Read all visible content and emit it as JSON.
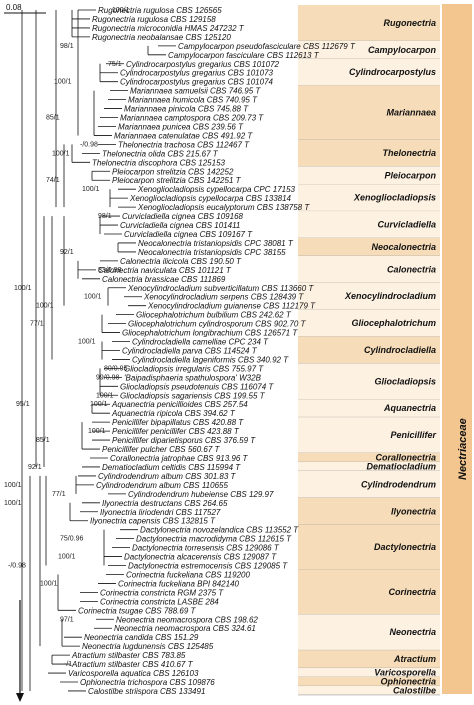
{
  "scale_label": "0.08",
  "family_label": "Nectriaceae",
  "supports": {
    "rugonectria": "100/1",
    "campylocarpon": "98/1",
    "cylindrocarpostylus": "75/1",
    "mariannaea_a": "100/1",
    "mariannaea_b": "85/1",
    "thelonectria_a": "-/0.98",
    "thelonectria_b": "100/1",
    "pleiocarpon": "74/1",
    "xenoglio": "100/1",
    "curvicladiella": "98/1",
    "neocalonectria": "92/1",
    "calonectria": "83/0.98",
    "xenocylindro": "100/1",
    "gliocephalo": "100/1",
    "cylindrocladiella": "100/1",
    "left_a": "100/1",
    "left_b": "77/1",
    "gliocladiopsis_a": "80/0.95",
    "gliocladiopsis_b": "99/0.98",
    "gliocladiopsis_c": "100/1",
    "left_c": "95/1",
    "aquanectria": "100/1",
    "left_d": "85/1",
    "penicillifer": "100/1",
    "left_e": "92/1",
    "cylindrodendrum_a": "100/1",
    "cylindrodendrum_b": "77/1",
    "ilyonectria": "100/1",
    "dactylonectria_a": "75/0.96",
    "dactylonectria_b": "100/1",
    "left_f": "100/1",
    "root": "-/0.98",
    "neonectria": "97/1",
    "atractium": "-/1"
  },
  "taxa": [
    "Rugonectria rugulosa CBS 126565",
    "Rugonectria rugulosa CBS 129158",
    "Rugonectria microconidia HMAS 247232 T",
    "Rugonectria neobalansae CBS 125120",
    "Campylocarpon pseudofasciculare CBS 112679 T",
    "Campylocarpon fasciculare CBS 112613 T",
    "Cylindrocarpostylus gregarius CBS 101072",
    "Cylindrocarpostylus gregarius CBS 101073",
    "Cylindrocarpostylus gregarius CBS 101074",
    "Mariannaea samuelsii CBS 746.95 T",
    "Mariannaea humicola CBS 740.95 T",
    "Mariannaea pinicola CBS 745.88 T",
    "Mariannaea camptospora CBS 209.73 T",
    "Mariannaea punicea CBS 239.56 T",
    "Mariannaea catenulatae CBS 491.92 T",
    "Thelonectria trachosa CBS 112467 T",
    "Thelonectria olida CBS 215.67 T",
    "Thelonectria discophora CBS 125153",
    "Pleiocarpon strelitzia CBS 142252",
    "Pleiocarpon strelitzia CBS 142251 T",
    "Xenogliocladiopsis cypellocarpa CPC 17153",
    "Xenogliocladiopsis cypellocarpa CBS 133814",
    "Xenogliocladiopsis eucalyptorum CBS 138758 T",
    "Curvicladiella cignea CBS 109168",
    "Curvicladiella cignea CBS 101411",
    "Curvicladiella cignea CBS 109167 T",
    "Neocalonectria tristaniopsidis CPC 38081 T",
    "Neocalonectria tristaniopsidis CPC 38155",
    "Calonectria ilicicola CBS 190.50 T",
    "Calonectria naviculata CBS 101121 T",
    "Calonectria brassicae CBS 111869",
    "Xenocylindrocladium subverticillatum CBS 113660 T",
    "Xenocylindrocladium serpens CBS 128439 T",
    "Xenocylindrocladium guianense CBS 112179 T",
    "Gliocephalotrichum bulbilium CBS 242.62 T",
    "Gliocephalotrichum cylindrosporum CBS 902.70 T",
    "Gliocephalotrichum longibrachium CBS 126571 T",
    "Cylindrocladiella camelliae CPC 234 T",
    "Cylindrocladiella parva CBS 114524 T",
    "Cylindrocladiella lageniformis CBS 340.92 T",
    "Gliocladiopsis irregularis CBS 755.97 T",
    "'Baipadisphaeria spathulospora' W32B",
    "Gliocladiopsis pseudotenuis CBS 116074 T",
    "Gliocladiopsis sagariensis CBS 199.55 T",
    "Aquanectria penicillioides CBS 257.54",
    "Aquanectria ripicola CBS 394.62 T",
    "Penicillifer bipapillatus CBS 420.88 T",
    "Penicillifer penicillifer CBS 423.88 T",
    "Penicillifer diparietisporus CBS 376.59 T",
    "Penicillifer pulcher CBS 560.67 T",
    "Corallonectria jatrophae CBS 913.96 T",
    "Dematiocladium celtidis CBS 115994 T",
    "Cylindrodendrum album CBS 301.83 T",
    "Cylindrodendrum album CBS 110655",
    "Cylindrodendrum hubeiense CBS 129.97",
    "Ilyonectria destructans CBS 264.65",
    "Ilyonectria liriodendri CBS 117527",
    "Ilyonectria capensis CBS 132815 T",
    "Dactylonectria novozelandica CBS 113552 T",
    "Dactylonectria macrodidyma CBS 112615 T",
    "Dactylonectria torresensis CBS 129086 T",
    "Dactylonectria alcacerensis CBS 129087 T",
    "Dactylonectria estremocensis CBS 129085 T",
    "Corinectria fuckeliana CBS 119200",
    "Corinectria fuckeliana BPI 842140",
    "Corinectria constricta RGM 2375 T",
    "Corinectria constricta LASBE 284",
    "Corinectria tsugae CBS 788.69 T",
    "Neonectria neomacrospora CBS 198.62",
    "Neonectria neomacrospora CBS 324.61",
    "Neonectria candida CBS 151.29",
    "Neonectria lugdunensis CBS 125485",
    "Atractium stilbaster CBS 783.85",
    "Atractium stilbaster CBS 410.67 T",
    "Varicosporella aquatica CBS 126103",
    "Ophionectria trichospora CBS 109876",
    "Calostilbe striispora CBS 133491"
  ],
  "genera": [
    {
      "name": "Rugonectria",
      "start": 0,
      "end": 3,
      "shade": true
    },
    {
      "name": "Campylocarpon",
      "start": 4,
      "end": 5,
      "shade": false
    },
    {
      "name": "Cylindrocarpostylus",
      "start": 6,
      "end": 8,
      "shade": false
    },
    {
      "name": "Mariannaea",
      "start": 9,
      "end": 14,
      "shade": true
    },
    {
      "name": "Thelonectria",
      "start": 15,
      "end": 17,
      "shade": true
    },
    {
      "name": "Pleiocarpon",
      "start": 18,
      "end": 19,
      "shade": false
    },
    {
      "name": "Xenogliocladiopsis",
      "start": 20,
      "end": 22,
      "shade": false
    },
    {
      "name": "Curvicladiella",
      "start": 23,
      "end": 25,
      "shade": false
    },
    {
      "name": "Neocalonectria",
      "start": 26,
      "end": 27,
      "shade": true
    },
    {
      "name": "Calonectria",
      "start": 28,
      "end": 30,
      "shade": false
    },
    {
      "name": "Xenocylindrocladium",
      "start": 31,
      "end": 33,
      "shade": false
    },
    {
      "name": "Gliocephalotrichum",
      "start": 34,
      "end": 36,
      "shade": false
    },
    {
      "name": "Cylindrocladiella",
      "start": 37,
      "end": 39,
      "shade": true
    },
    {
      "name": "Gliocladiopsis",
      "start": 40,
      "end": 43,
      "shade": false
    },
    {
      "name": "Aquanectria",
      "start": 44,
      "end": 45,
      "shade": false
    },
    {
      "name": "Penicillifer",
      "start": 46,
      "end": 49,
      "shade": false
    },
    {
      "name": "Corallonectria",
      "start": 50,
      "end": 50,
      "shade": true
    },
    {
      "name": "Dematiocladium",
      "start": 51,
      "end": 51,
      "shade": false
    },
    {
      "name": "Cylindrodendrum",
      "start": 52,
      "end": 54,
      "shade": false
    },
    {
      "name": "Ilyonectria",
      "start": 55,
      "end": 57,
      "shade": true
    },
    {
      "name": "Dactylonectria",
      "start": 58,
      "end": 62,
      "shade": true
    },
    {
      "name": "Corinectria",
      "start": 63,
      "end": 67,
      "shade": true
    },
    {
      "name": "Neonectria",
      "start": 68,
      "end": 71,
      "shade": false
    },
    {
      "name": "Atractium",
      "start": 72,
      "end": 73,
      "shade": true
    },
    {
      "name": "Varicosporella",
      "start": 74,
      "end": 74,
      "shade": false
    },
    {
      "name": "Ophionectria",
      "start": 75,
      "end": 75,
      "shade": true
    },
    {
      "name": "Calostilbe",
      "start": 76,
      "end": 76,
      "shade": false
    }
  ],
  "colors": {
    "band_shade": "#f6dcb8",
    "band_plain": "#fdf1e2",
    "family_band": "#f3c68f"
  }
}
